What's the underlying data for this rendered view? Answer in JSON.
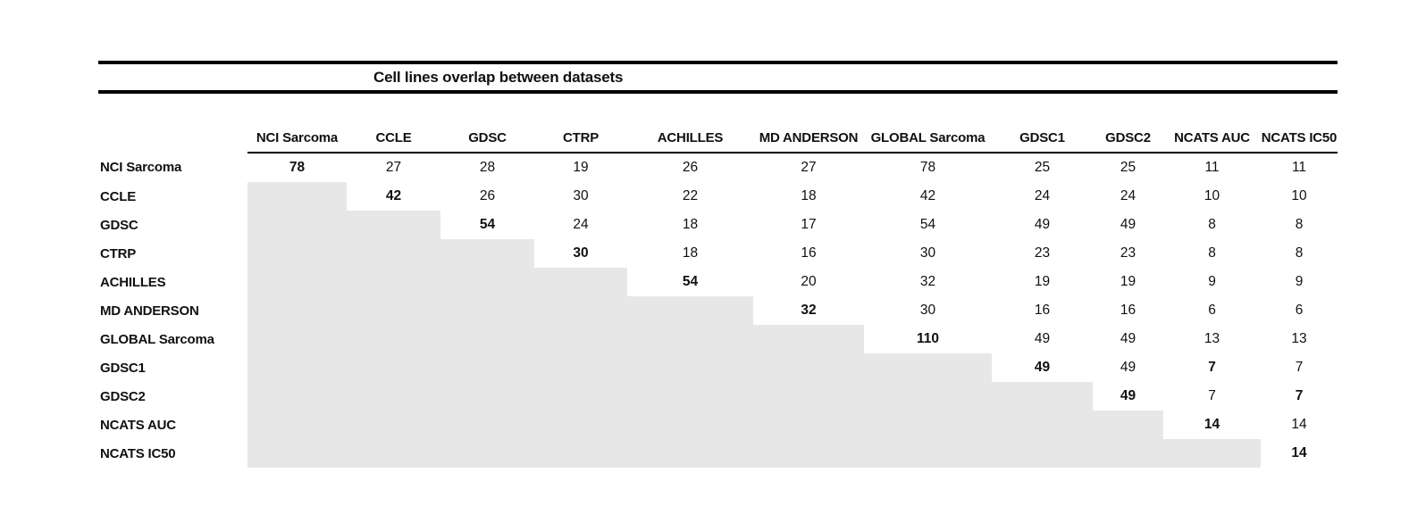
{
  "title": "Cell lines overlap between datasets",
  "colors": {
    "background": "#ffffff",
    "text": "#111111",
    "rule": "#000000",
    "shaded_cell": "#e7e7e7"
  },
  "chart_data": {
    "type": "table",
    "title": "Cell lines overlap between datasets",
    "columns": [
      "NCI Sarcoma",
      "CCLE",
      "GDSC",
      "CTRP",
      "ACHILLES",
      "MD ANDERSON",
      "GLOBAL Sarcoma",
      "GDSC1",
      "GDSC2",
      "NCATS AUC",
      "NCATS IC50"
    ],
    "rows": [
      {
        "label": "NCI Sarcoma",
        "values": [
          78,
          27,
          28,
          19,
          26,
          27,
          78,
          25,
          25,
          11,
          11
        ],
        "bold": [
          0
        ]
      },
      {
        "label": "CCLE",
        "values": [
          null,
          42,
          26,
          30,
          22,
          18,
          42,
          24,
          24,
          10,
          10
        ],
        "bold": [
          1
        ]
      },
      {
        "label": "GDSC",
        "values": [
          null,
          null,
          54,
          24,
          18,
          17,
          54,
          49,
          49,
          8,
          8
        ],
        "bold": [
          2
        ]
      },
      {
        "label": "CTRP",
        "values": [
          null,
          null,
          null,
          30,
          18,
          16,
          30,
          23,
          23,
          8,
          8
        ],
        "bold": [
          3
        ]
      },
      {
        "label": "ACHILLES",
        "values": [
          null,
          null,
          null,
          null,
          54,
          20,
          32,
          19,
          19,
          9,
          9
        ],
        "bold": [
          4
        ]
      },
      {
        "label": "MD ANDERSON",
        "values": [
          null,
          null,
          null,
          null,
          null,
          32,
          30,
          16,
          16,
          6,
          6
        ],
        "bold": [
          5
        ]
      },
      {
        "label": "GLOBAL Sarcoma",
        "values": [
          null,
          null,
          null,
          null,
          null,
          null,
          110,
          49,
          49,
          13,
          13
        ],
        "bold": [
          6
        ]
      },
      {
        "label": "GDSC1",
        "values": [
          null,
          null,
          null,
          null,
          null,
          null,
          null,
          49,
          49,
          7,
          7
        ],
        "bold": [
          7,
          9
        ]
      },
      {
        "label": "GDSC2",
        "values": [
          null,
          null,
          null,
          null,
          null,
          null,
          null,
          null,
          49,
          7,
          7
        ],
        "bold": [
          8,
          10
        ]
      },
      {
        "label": "NCATS AUC",
        "values": [
          null,
          null,
          null,
          null,
          null,
          null,
          null,
          null,
          null,
          14,
          14
        ],
        "bold": [
          9
        ]
      },
      {
        "label": "NCATS IC50",
        "values": [
          null,
          null,
          null,
          null,
          null,
          null,
          null,
          null,
          null,
          null,
          14
        ],
        "bold": [
          10
        ]
      }
    ],
    "layout": {
      "grid": false,
      "shading": "lower-triangle",
      "diagonal": "bold"
    }
  }
}
